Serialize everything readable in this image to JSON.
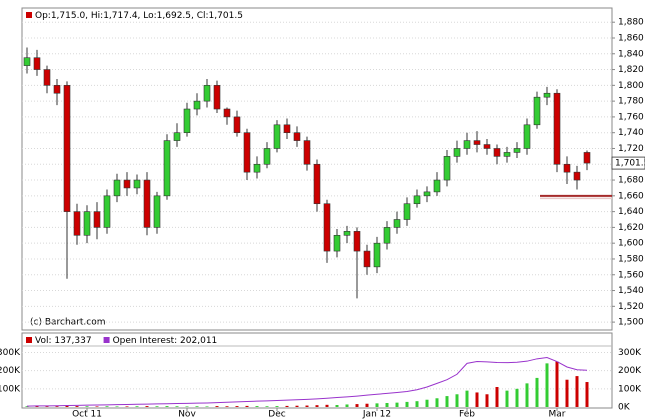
{
  "chart_data": [
    {
      "type": "candlestick",
      "legend": "Op:1,715.0, Hi:1,717.4, Lo:1,692.5, Cl:1,701.5",
      "annotation": "(c) Barchart.com",
      "last_label": "1,701.5",
      "categories": [
        null,
        null,
        null,
        null,
        null,
        null,
        "Oct 11",
        null,
        null,
        null,
        null,
        null,
        null,
        null,
        null,
        null,
        "Nov",
        null,
        null,
        null,
        null,
        null,
        null,
        null,
        null,
        "Dec",
        null,
        null,
        null,
        null,
        null,
        null,
        null,
        null,
        null,
        "Jan 12",
        null,
        null,
        null,
        null,
        null,
        null,
        null,
        null,
        "Feb",
        null,
        null,
        null,
        null,
        null,
        null,
        null,
        null,
        "Mar",
        null,
        null,
        null
      ],
      "open": [
        1825,
        1835,
        1820,
        1800,
        1800,
        1640,
        1610,
        1640,
        1620,
        1660,
        1680,
        1670,
        1680,
        1620,
        1660,
        1730,
        1740,
        1770,
        1780,
        1800,
        1770,
        1760,
        1740,
        1690,
        1700,
        1720,
        1750,
        1740,
        1730,
        1700,
        1650,
        1590,
        1610,
        1615,
        1590,
        1570,
        1600,
        1620,
        1630,
        1650,
        1660,
        1665,
        1680,
        1710,
        1720,
        1730,
        1725,
        1720,
        1710,
        1715,
        1720,
        1750,
        1785,
        1790,
        1700,
        1690,
        1715
      ],
      "high": [
        1848,
        1845,
        1825,
        1808,
        1805,
        1650,
        1648,
        1652,
        1668,
        1688,
        1690,
        1687,
        1690,
        1665,
        1738,
        1752,
        1778,
        1790,
        1808,
        1806,
        1772,
        1768,
        1745,
        1710,
        1728,
        1756,
        1758,
        1748,
        1735,
        1706,
        1655,
        1618,
        1622,
        1620,
        1598,
        1608,
        1628,
        1640,
        1658,
        1668,
        1672,
        1690,
        1718,
        1730,
        1740,
        1742,
        1732,
        1725,
        1722,
        1728,
        1758,
        1792,
        1798,
        1795,
        1710,
        1698,
        1717.4
      ],
      "low": [
        1815,
        1812,
        1790,
        1775,
        1555,
        1598,
        1600,
        1605,
        1612,
        1652,
        1660,
        1662,
        1610,
        1612,
        1655,
        1722,
        1735,
        1762,
        1772,
        1765,
        1750,
        1735,
        1680,
        1682,
        1695,
        1715,
        1732,
        1722,
        1692,
        1640,
        1575,
        1582,
        1600,
        1530,
        1560,
        1562,
        1592,
        1612,
        1622,
        1645,
        1652,
        1660,
        1672,
        1702,
        1712,
        1715,
        1712,
        1700,
        1702,
        1708,
        1712,
        1745,
        1775,
        1690,
        1675,
        1668,
        1692.5
      ],
      "close": [
        1835,
        1820,
        1800,
        1790,
        1640,
        1610,
        1640,
        1620,
        1660,
        1680,
        1670,
        1680,
        1620,
        1660,
        1730,
        1740,
        1770,
        1780,
        1800,
        1770,
        1760,
        1740,
        1690,
        1700,
        1720,
        1750,
        1740,
        1730,
        1700,
        1650,
        1590,
        1610,
        1615,
        1590,
        1570,
        1600,
        1620,
        1630,
        1650,
        1660,
        1665,
        1680,
        1710,
        1720,
        1730,
        1725,
        1720,
        1710,
        1715,
        1720,
        1750,
        1785,
        1790,
        1700,
        1690,
        1680,
        1701.5
      ],
      "up_color": "#33cc33",
      "down_color": "#cc0000",
      "hline": {
        "value": 1660,
        "color": "#a52a2a"
      },
      "ylim": [
        1490,
        1898
      ],
      "yticks": [
        {
          "value": 1500,
          "label": "1,500"
        },
        {
          "value": 1520,
          "label": "1,520"
        },
        {
          "value": 1540,
          "label": "1,540"
        },
        {
          "value": 1560,
          "label": "1,560"
        },
        {
          "value": 1580,
          "label": "1,580"
        },
        {
          "value": 1600,
          "label": "1,600"
        },
        {
          "value": 1620,
          "label": "1,620"
        },
        {
          "value": 1640,
          "label": "1,640"
        },
        {
          "value": 1660,
          "label": "1,660"
        },
        {
          "value": 1680,
          "label": "1,680"
        },
        {
          "value": 1700,
          "label": "1,700"
        },
        {
          "value": 1720,
          "label": "1,720"
        },
        {
          "value": 1740,
          "label": "1,740"
        },
        {
          "value": 1760,
          "label": "1,760"
        },
        {
          "value": 1780,
          "label": "1,780"
        },
        {
          "value": 1800,
          "label": "1,800"
        },
        {
          "value": 1820,
          "label": "1,820"
        },
        {
          "value": 1840,
          "label": "1,840"
        },
        {
          "value": 1860,
          "label": "1,860"
        },
        {
          "value": 1880,
          "label": "1,880"
        }
      ],
      "grid": true
    },
    {
      "type": "volume",
      "series": [
        {
          "name": "Vol: 137,337",
          "color": "#cc0000",
          "values": [
            4000,
            5000,
            3000,
            4000,
            6000,
            5000,
            4000,
            3000,
            4000,
            3000,
            3000,
            4000,
            5000,
            4000,
            5000,
            4000,
            3000,
            4000,
            3000,
            5000,
            4000,
            5000,
            6000,
            5000,
            4000,
            5000,
            6000,
            7000,
            8000,
            10000,
            12000,
            11000,
            14000,
            16000,
            18000,
            20000,
            22000,
            24000,
            28000,
            32000,
            40000,
            48000,
            60000,
            70000,
            90000,
            80000,
            70000,
            110000,
            90000,
            100000,
            130000,
            160000,
            240000,
            250000,
            150000,
            170000,
            137337
          ]
        },
        {
          "name": "Open Interest: 202,011",
          "color": "#9933cc",
          "values": [
            5000,
            6000,
            6000,
            7000,
            8000,
            9000,
            10000,
            11000,
            12000,
            13000,
            14000,
            15000,
            16000,
            17000,
            18000,
            19000,
            20000,
            21000,
            22000,
            24000,
            26000,
            28000,
            30000,
            32000,
            34000,
            36000,
            38000,
            40000,
            42000,
            45000,
            48000,
            52000,
            56000,
            60000,
            65000,
            70000,
            75000,
            80000,
            85000,
            95000,
            110000,
            130000,
            150000,
            180000,
            240000,
            250000,
            248000,
            245000,
            244000,
            246000,
            252000,
            265000,
            272000,
            250000,
            220000,
            205000,
            202011
          ]
        }
      ],
      "ylim": [
        0,
        330000
      ],
      "yticks": [
        {
          "value": 0,
          "label": "0K"
        },
        {
          "value": 100000,
          "label": "100K"
        },
        {
          "value": 200000,
          "label": "200K"
        },
        {
          "value": 300000,
          "label": "300K"
        }
      ],
      "grid": true
    }
  ]
}
